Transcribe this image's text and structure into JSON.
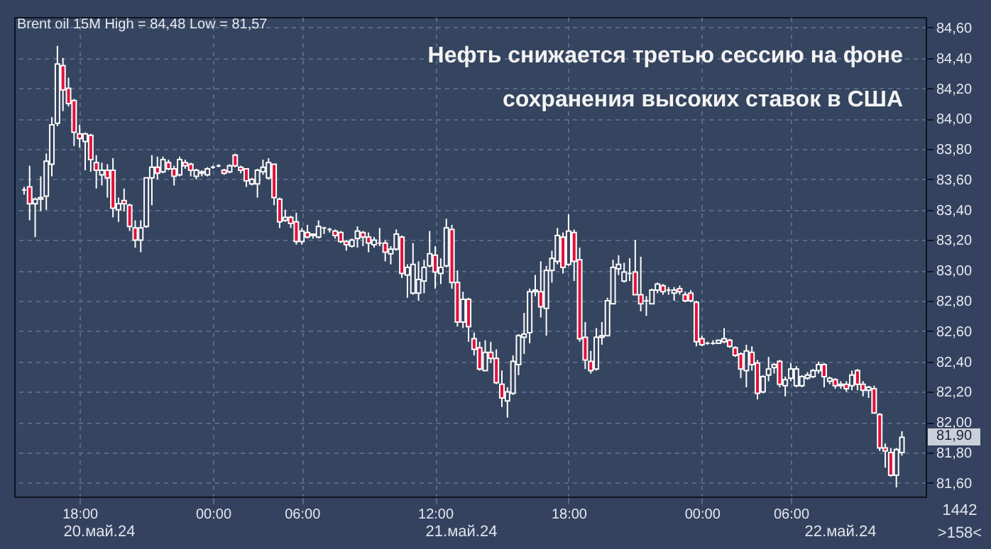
{
  "chart_data": {
    "type": "candlestick",
    "title": "Нефть снижается третью сессию на фоне сохранения высоких ставок в США",
    "subtitle": "Brent oil 15M High = 84,48 Low = 81,57",
    "categories": [
      null,
      null,
      null,
      null,
      null,
      null,
      null,
      null,
      null,
      null,
      "18:00",
      null,
      null,
      null,
      null,
      null,
      null,
      null,
      null,
      null,
      null,
      null,
      null,
      null,
      null,
      null,
      null,
      null,
      null,
      null,
      null,
      null,
      null,
      null,
      "00:00",
      null,
      null,
      null,
      null,
      null,
      null,
      null,
      null,
      null,
      null,
      null,
      null,
      null,
      null,
      null,
      "06:00",
      null,
      null,
      null,
      null,
      null,
      null,
      null,
      null,
      null,
      null,
      null,
      null,
      null,
      null,
      null,
      null,
      null,
      null,
      null,
      null,
      null,
      null,
      null,
      "12:00",
      null,
      null,
      null,
      null,
      null,
      null,
      null,
      null,
      null,
      null,
      null,
      null,
      null,
      null,
      null,
      null,
      null,
      null,
      null,
      null,
      null,
      null,
      null,
      "18:00",
      null,
      null,
      null,
      null,
      null,
      null,
      null,
      null,
      null,
      null,
      null,
      null,
      null,
      null,
      null,
      null,
      null,
      null,
      null,
      null,
      null,
      null,
      null,
      "00:00",
      null,
      null,
      null,
      null,
      null,
      null,
      null,
      null,
      null,
      null,
      null,
      null,
      null,
      null,
      null,
      "06:00",
      null,
      null,
      null,
      null,
      null,
      null,
      null,
      null,
      null,
      null,
      null,
      null,
      null,
      null,
      null,
      null,
      null,
      null,
      null,
      null
    ],
    "ohlc": [
      [
        83.53,
        83.55,
        83.5,
        83.53
      ],
      [
        83.55,
        83.69,
        83.33,
        83.44
      ],
      [
        83.44,
        83.48,
        83.22,
        83.47
      ],
      [
        83.47,
        83.62,
        83.39,
        83.48
      ],
      [
        83.49,
        83.77,
        83.4,
        83.72
      ],
      [
        83.7,
        84.01,
        83.62,
        83.96
      ],
      [
        83.97,
        84.48,
        83.95,
        84.36
      ],
      [
        84.35,
        84.4,
        84.05,
        84.19
      ],
      [
        84.2,
        84.27,
        84.08,
        84.1
      ],
      [
        84.12,
        84.13,
        83.82,
        83.91
      ],
      [
        83.9,
        83.96,
        83.81,
        83.87
      ],
      [
        83.85,
        83.91,
        83.66,
        83.9
      ],
      [
        83.89,
        83.9,
        83.65,
        83.73
      ],
      [
        83.71,
        83.76,
        83.54,
        83.66
      ],
      [
        83.63,
        83.71,
        83.56,
        83.66
      ],
      [
        83.66,
        83.7,
        83.48,
        83.61
      ],
      [
        83.66,
        83.74,
        83.35,
        83.41
      ],
      [
        83.4,
        83.48,
        83.32,
        83.44
      ],
      [
        83.46,
        83.54,
        83.39,
        83.44
      ],
      [
        83.43,
        83.44,
        83.26,
        83.29
      ],
      [
        83.28,
        83.33,
        83.15,
        83.2
      ],
      [
        83.2,
        83.33,
        83.12,
        83.28
      ],
      [
        83.29,
        83.61,
        83.28,
        83.61
      ],
      [
        83.61,
        83.76,
        83.43,
        83.68
      ],
      [
        83.68,
        83.75,
        83.6,
        83.64
      ],
      [
        83.65,
        83.75,
        83.64,
        83.73
      ],
      [
        83.71,
        83.73,
        83.66,
        83.67
      ],
      [
        83.67,
        83.69,
        83.56,
        83.62
      ],
      [
        83.63,
        83.75,
        83.62,
        83.73
      ],
      [
        83.71,
        83.73,
        83.67,
        83.69
      ],
      [
        83.7,
        83.71,
        83.62,
        83.66
      ],
      [
        83.62,
        83.67,
        83.6,
        83.66
      ],
      [
        83.64,
        83.66,
        83.62,
        83.65
      ],
      [
        83.63,
        83.68,
        83.62,
        83.67
      ],
      [
        83.68,
        83.69,
        83.67,
        83.68
      ],
      [
        83.69,
        83.7,
        83.68,
        83.69
      ],
      [
        83.66,
        83.67,
        83.63,
        83.64
      ],
      [
        83.65,
        83.7,
        83.64,
        83.69
      ],
      [
        83.76,
        83.77,
        83.68,
        83.69
      ],
      [
        83.68,
        83.69,
        83.64,
        83.66
      ],
      [
        83.67,
        83.67,
        83.55,
        83.59
      ],
      [
        83.57,
        83.61,
        83.56,
        83.6
      ],
      [
        83.57,
        83.67,
        83.48,
        83.66
      ],
      [
        83.65,
        83.73,
        83.63,
        83.68
      ],
      [
        83.61,
        83.74,
        83.6,
        83.71
      ],
      [
        83.7,
        83.7,
        83.43,
        83.48
      ],
      [
        83.47,
        83.48,
        83.28,
        83.32
      ],
      [
        83.33,
        83.4,
        83.32,
        83.35
      ],
      [
        83.35,
        83.36,
        83.28,
        83.31
      ],
      [
        83.32,
        83.38,
        83.17,
        83.19
      ],
      [
        83.19,
        83.28,
        83.17,
        83.26
      ],
      [
        83.25,
        83.3,
        83.21,
        83.22
      ],
      [
        83.23,
        83.24,
        83.21,
        83.24
      ],
      [
        83.22,
        83.33,
        83.21,
        83.29
      ],
      [
        83.28,
        83.28,
        83.24,
        83.28
      ],
      [
        83.27,
        83.28,
        83.25,
        83.27
      ],
      [
        83.26,
        83.27,
        83.21,
        83.23
      ],
      [
        83.25,
        83.26,
        83.18,
        83.19
      ],
      [
        83.19,
        83.2,
        83.13,
        83.17
      ],
      [
        83.16,
        83.21,
        83.15,
        83.2
      ],
      [
        83.21,
        83.29,
        83.15,
        83.26
      ],
      [
        83.25,
        83.26,
        83.16,
        83.22
      ],
      [
        83.22,
        83.25,
        83.12,
        83.18
      ],
      [
        83.17,
        83.22,
        83.15,
        83.2
      ],
      [
        83.18,
        83.28,
        83.16,
        83.18
      ],
      [
        83.18,
        83.2,
        83.06,
        83.12
      ],
      [
        83.11,
        83.16,
        83.04,
        83.14
      ],
      [
        83.14,
        83.27,
        83.13,
        83.24
      ],
      [
        83.22,
        83.23,
        82.95,
        82.98
      ],
      [
        82.97,
        83.04,
        82.82,
        83.02
      ],
      [
        82.85,
        83.18,
        82.84,
        83.04
      ],
      [
        82.85,
        83.06,
        82.8,
        82.94
      ],
      [
        82.93,
        83.07,
        82.85,
        83.02
      ],
      [
        83.03,
        83.26,
        83.02,
        83.11
      ],
      [
        83.1,
        83.16,
        82.88,
        82.99
      ],
      [
        82.98,
        83.08,
        82.91,
        83.02
      ],
      [
        83.03,
        83.34,
        83.02,
        83.28
      ],
      [
        83.27,
        83.3,
        82.88,
        82.92
      ],
      [
        82.92,
        83.0,
        82.63,
        82.66
      ],
      [
        82.66,
        82.86,
        82.62,
        82.81
      ],
      [
        82.81,
        82.82,
        82.53,
        82.63
      ],
      [
        82.55,
        82.59,
        82.44,
        82.48
      ],
      [
        82.49,
        82.53,
        82.34,
        82.35
      ],
      [
        82.34,
        82.54,
        82.34,
        82.46
      ],
      [
        82.46,
        82.53,
        82.39,
        82.42
      ],
      [
        82.42,
        82.48,
        82.25,
        82.26
      ],
      [
        82.25,
        82.34,
        82.1,
        82.16
      ],
      [
        82.14,
        82.23,
        82.03,
        82.2
      ],
      [
        82.19,
        82.44,
        82.18,
        82.4
      ],
      [
        82.38,
        82.58,
        82.31,
        82.57
      ],
      [
        82.56,
        82.72,
        82.45,
        82.58
      ],
      [
        82.59,
        82.88,
        82.52,
        82.86
      ],
      [
        82.86,
        82.97,
        82.83,
        82.87
      ],
      [
        82.86,
        83.06,
        82.69,
        82.76
      ],
      [
        82.75,
        83.03,
        82.57,
        83.0
      ],
      [
        83.0,
        83.13,
        82.92,
        83.08
      ],
      [
        83.06,
        83.28,
        83.04,
        83.23
      ],
      [
        83.22,
        83.25,
        82.98,
        83.02
      ],
      [
        83.04,
        83.37,
        83.03,
        83.26
      ],
      [
        83.25,
        83.27,
        82.93,
        83.06
      ],
      [
        83.07,
        83.15,
        82.53,
        82.55
      ],
      [
        82.56,
        82.66,
        82.35,
        82.41
      ],
      [
        82.4,
        82.47,
        82.32,
        82.34
      ],
      [
        82.35,
        82.62,
        82.34,
        82.56
      ],
      [
        82.56,
        82.66,
        82.51,
        82.57
      ],
      [
        82.57,
        82.82,
        82.57,
        82.8
      ],
      [
        82.78,
        83.07,
        82.78,
        83.02
      ],
      [
        83.01,
        83.1,
        82.97,
        83.04
      ],
      [
        82.93,
        83.05,
        82.92,
        82.99
      ],
      [
        82.98,
        83.08,
        82.93,
        82.98
      ],
      [
        82.99,
        83.2,
        82.84,
        82.84
      ],
      [
        82.84,
        83.09,
        82.73,
        82.78
      ],
      [
        82.8,
        82.83,
        82.7,
        82.8
      ],
      [
        82.78,
        82.88,
        82.78,
        82.87
      ],
      [
        82.87,
        82.92,
        82.85,
        82.91
      ],
      [
        82.9,
        82.91,
        82.84,
        82.86
      ],
      [
        82.87,
        82.89,
        82.84,
        82.87
      ],
      [
        82.85,
        82.89,
        82.8,
        82.87
      ],
      [
        82.88,
        82.9,
        82.84,
        82.86
      ],
      [
        82.84,
        82.86,
        82.79,
        82.8
      ],
      [
        82.85,
        82.87,
        82.79,
        82.8
      ],
      [
        82.79,
        82.8,
        82.5,
        82.53
      ],
      [
        82.55,
        82.57,
        82.5,
        82.51
      ],
      [
        82.52,
        82.53,
        82.51,
        82.52
      ],
      [
        82.52,
        82.54,
        82.51,
        82.52
      ],
      [
        82.52,
        82.54,
        82.52,
        82.54
      ],
      [
        82.53,
        82.62,
        82.52,
        82.55
      ],
      [
        82.54,
        82.55,
        82.49,
        82.5
      ],
      [
        82.49,
        82.5,
        82.43,
        82.44
      ],
      [
        82.45,
        82.46,
        82.29,
        82.35
      ],
      [
        82.34,
        82.51,
        82.23,
        82.47
      ],
      [
        82.46,
        82.5,
        82.34,
        82.38
      ],
      [
        82.39,
        82.41,
        82.15,
        82.19
      ],
      [
        82.2,
        82.31,
        82.19,
        82.3
      ],
      [
        82.31,
        82.43,
        82.27,
        82.35
      ],
      [
        82.36,
        82.39,
        82.32,
        82.38
      ],
      [
        82.4,
        82.41,
        82.23,
        82.25
      ],
      [
        82.24,
        82.3,
        82.17,
        82.28
      ],
      [
        82.29,
        82.39,
        82.27,
        82.35
      ],
      [
        82.24,
        82.37,
        82.23,
        82.35
      ],
      [
        82.24,
        82.31,
        82.23,
        82.3
      ],
      [
        82.29,
        82.33,
        82.28,
        82.31
      ],
      [
        82.3,
        82.35,
        82.29,
        82.34
      ],
      [
        82.34,
        82.4,
        82.32,
        82.38
      ],
      [
        82.38,
        82.39,
        82.23,
        82.3
      ],
      [
        82.27,
        82.3,
        82.25,
        82.29
      ],
      [
        82.28,
        82.29,
        82.22,
        82.24
      ],
      [
        82.25,
        82.27,
        82.22,
        82.24
      ],
      [
        82.25,
        82.27,
        82.2,
        82.22
      ],
      [
        82.24,
        82.34,
        82.21,
        82.31
      ],
      [
        82.34,
        82.35,
        82.21,
        82.25
      ],
      [
        82.25,
        82.27,
        82.17,
        82.21
      ],
      [
        82.21,
        82.24,
        82.16,
        82.23
      ],
      [
        82.22,
        82.24,
        82.06,
        82.06
      ],
      [
        82.05,
        82.06,
        81.81,
        81.83
      ],
      [
        81.83,
        81.86,
        81.7,
        81.81
      ],
      [
        81.8,
        81.83,
        81.64,
        81.65
      ],
      [
        81.65,
        81.83,
        81.57,
        81.82
      ],
      [
        81.8,
        81.94,
        81.78,
        81.9
      ]
    ],
    "ylim": [
      81.51,
      84.67
    ],
    "yticks": [
      {
        "value": 81.6,
        "label": "81,60"
      },
      {
        "value": 81.8,
        "label": "81,80"
      },
      {
        "value": 82.0,
        "label": "82,00"
      },
      {
        "value": 82.2,
        "label": "82,20"
      },
      {
        "value": 82.4,
        "label": "82,40"
      },
      {
        "value": 82.6,
        "label": "82,60"
      },
      {
        "value": 82.8,
        "label": "82,80"
      },
      {
        "value": 83.0,
        "label": "83,00"
      },
      {
        "value": 83.2,
        "label": "83,20"
      },
      {
        "value": 83.4,
        "label": "83,40"
      },
      {
        "value": 83.6,
        "label": "83,60"
      },
      {
        "value": 83.8,
        "label": "83,80"
      },
      {
        "value": 84.0,
        "label": "84,00"
      },
      {
        "value": 84.2,
        "label": "84,20"
      },
      {
        "value": 84.4,
        "label": "84,40"
      },
      {
        "value": 84.6,
        "label": "84,60"
      }
    ],
    "grid": true,
    "annotations": [
      "20.май.24",
      "21.май.24",
      "22.май.24",
      "1442",
      ">158<",
      "81,90"
    ]
  }
}
